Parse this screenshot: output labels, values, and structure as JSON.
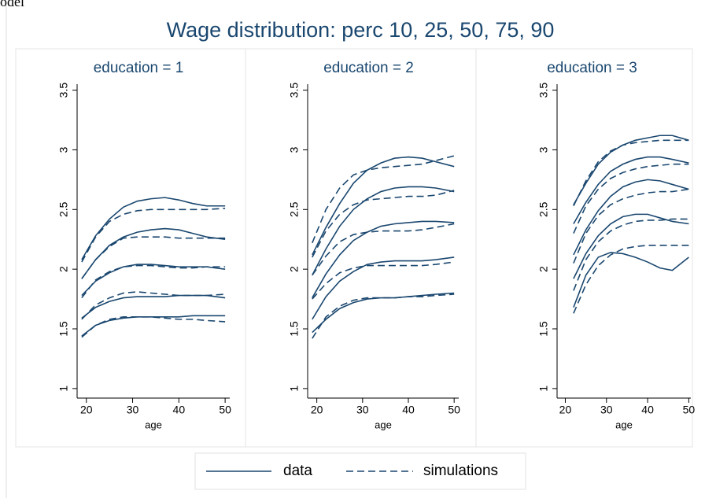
{
  "clipped_text": "odel",
  "title": "Wage distribution: perc 10, 25, 50, 75, 90",
  "legend": [
    {
      "name": "data",
      "style": "solid",
      "color": "#1a476f"
    },
    {
      "name": "simulations",
      "style": "dashed",
      "color": "#1a476f"
    }
  ],
  "chart_data": [
    {
      "type": "line",
      "title": "education = 1",
      "x_label": "age",
      "x": [
        19,
        22,
        25,
        28,
        31,
        34,
        37,
        40,
        43,
        46,
        50
      ],
      "xlim": [
        18,
        51
      ],
      "xticks": [
        20,
        30,
        40,
        50
      ],
      "ylim": [
        0.92,
        3.55
      ],
      "yticks": [
        1,
        1.5,
        2,
        2.5,
        3,
        3.5
      ],
      "series": [
        {
          "style": "solid",
          "color": "#1a476f",
          "values": [
            2.08,
            2.28,
            2.42,
            2.52,
            2.57,
            2.59,
            2.6,
            2.58,
            2.55,
            2.53,
            2.53
          ]
        },
        {
          "style": "solid",
          "color": "#1a476f",
          "values": [
            1.92,
            2.08,
            2.2,
            2.27,
            2.31,
            2.33,
            2.34,
            2.33,
            2.3,
            2.27,
            2.25
          ]
        },
        {
          "style": "solid",
          "color": "#1a476f",
          "values": [
            1.78,
            1.9,
            1.97,
            2.02,
            2.04,
            2.04,
            2.03,
            2.02,
            2.02,
            2.02,
            2.0
          ]
        },
        {
          "style": "solid",
          "color": "#1a476f",
          "values": [
            1.59,
            1.68,
            1.73,
            1.76,
            1.77,
            1.77,
            1.77,
            1.78,
            1.78,
            1.78,
            1.76
          ]
        },
        {
          "style": "solid",
          "color": "#1a476f",
          "values": [
            1.44,
            1.53,
            1.57,
            1.59,
            1.6,
            1.6,
            1.6,
            1.6,
            1.61,
            1.61,
            1.61
          ]
        },
        {
          "style": "dashed",
          "color": "#1a476f",
          "values": [
            2.06,
            2.27,
            2.4,
            2.46,
            2.49,
            2.5,
            2.5,
            2.5,
            2.5,
            2.5,
            2.51
          ]
        },
        {
          "style": "dashed",
          "color": "#1a476f",
          "values": [
            1.92,
            2.08,
            2.19,
            2.26,
            2.27,
            2.27,
            2.27,
            2.26,
            2.26,
            2.26,
            2.26
          ]
        },
        {
          "style": "dashed",
          "color": "#1a476f",
          "values": [
            1.76,
            1.91,
            1.98,
            2.02,
            2.03,
            2.03,
            2.02,
            2.01,
            2.01,
            2.02,
            2.02
          ]
        },
        {
          "style": "dashed",
          "color": "#1a476f",
          "values": [
            1.58,
            1.7,
            1.76,
            1.8,
            1.81,
            1.8,
            1.79,
            1.78,
            1.78,
            1.78,
            1.79
          ]
        },
        {
          "style": "dashed",
          "color": "#1a476f",
          "values": [
            1.43,
            1.53,
            1.58,
            1.6,
            1.6,
            1.6,
            1.59,
            1.58,
            1.58,
            1.57,
            1.56
          ]
        }
      ]
    },
    {
      "type": "line",
      "title": "education = 2",
      "x_label": "age",
      "x": [
        19,
        22,
        25,
        28,
        31,
        34,
        37,
        40,
        43,
        46,
        50
      ],
      "xlim": [
        18,
        51
      ],
      "xticks": [
        20,
        30,
        40,
        50
      ],
      "ylim": [
        0.92,
        3.55
      ],
      "yticks": [
        1,
        1.5,
        2,
        2.5,
        3,
        3.5
      ],
      "series": [
        {
          "style": "solid",
          "color": "#1a476f",
          "values": [
            2.12,
            2.35,
            2.55,
            2.72,
            2.83,
            2.89,
            2.93,
            2.94,
            2.93,
            2.9,
            2.86
          ]
        },
        {
          "style": "solid",
          "color": "#1a476f",
          "values": [
            1.95,
            2.17,
            2.36,
            2.5,
            2.59,
            2.65,
            2.68,
            2.69,
            2.69,
            2.68,
            2.65
          ]
        },
        {
          "style": "solid",
          "color": "#1a476f",
          "values": [
            1.76,
            1.96,
            2.12,
            2.24,
            2.31,
            2.36,
            2.38,
            2.39,
            2.4,
            2.4,
            2.39
          ]
        },
        {
          "style": "solid",
          "color": "#1a476f",
          "values": [
            1.58,
            1.77,
            1.9,
            1.98,
            2.04,
            2.06,
            2.07,
            2.07,
            2.07,
            2.08,
            2.1
          ]
        },
        {
          "style": "solid",
          "color": "#1a476f",
          "values": [
            1.47,
            1.58,
            1.67,
            1.72,
            1.75,
            1.76,
            1.76,
            1.77,
            1.78,
            1.79,
            1.8
          ]
        },
        {
          "style": "dashed",
          "color": "#1a476f",
          "values": [
            2.22,
            2.5,
            2.68,
            2.79,
            2.83,
            2.85,
            2.86,
            2.87,
            2.88,
            2.91,
            2.95
          ]
        },
        {
          "style": "dashed",
          "color": "#1a476f",
          "values": [
            2.1,
            2.32,
            2.46,
            2.54,
            2.58,
            2.59,
            2.6,
            2.61,
            2.61,
            2.62,
            2.66
          ]
        },
        {
          "style": "dashed",
          "color": "#1a476f",
          "values": [
            1.95,
            2.11,
            2.23,
            2.29,
            2.31,
            2.32,
            2.32,
            2.32,
            2.33,
            2.35,
            2.38
          ]
        },
        {
          "style": "dashed",
          "color": "#1a476f",
          "values": [
            1.75,
            1.88,
            1.97,
            2.01,
            2.03,
            2.03,
            2.03,
            2.03,
            2.03,
            2.04,
            2.06
          ]
        },
        {
          "style": "dashed",
          "color": "#1a476f",
          "values": [
            1.42,
            1.6,
            1.69,
            1.74,
            1.76,
            1.76,
            1.76,
            1.77,
            1.77,
            1.78,
            1.79
          ]
        }
      ]
    },
    {
      "type": "line",
      "title": "education = 3",
      "x_label": "age",
      "x": [
        22,
        25,
        28,
        31,
        34,
        37,
        40,
        43,
        46,
        50
      ],
      "xlim": [
        18,
        50.5
      ],
      "xticks": [
        20,
        30,
        40,
        50
      ],
      "ylim": [
        0.92,
        3.55
      ],
      "yticks": [
        1,
        1.5,
        2,
        2.5,
        3,
        3.5
      ],
      "series": [
        {
          "style": "solid",
          "color": "#1a476f",
          "values": [
            2.54,
            2.72,
            2.88,
            2.98,
            3.04,
            3.08,
            3.1,
            3.12,
            3.12,
            3.08
          ]
        },
        {
          "style": "solid",
          "color": "#1a476f",
          "values": [
            2.38,
            2.56,
            2.71,
            2.82,
            2.88,
            2.92,
            2.94,
            2.94,
            2.92,
            2.89
          ]
        },
        {
          "style": "solid",
          "color": "#1a476f",
          "values": [
            2.12,
            2.33,
            2.49,
            2.61,
            2.69,
            2.73,
            2.75,
            2.74,
            2.71,
            2.67
          ]
        },
        {
          "style": "solid",
          "color": "#1a476f",
          "values": [
            1.92,
            2.13,
            2.28,
            2.38,
            2.44,
            2.46,
            2.46,
            2.43,
            2.4,
            2.38
          ]
        },
        {
          "style": "solid",
          "color": "#1a476f",
          "values": [
            1.68,
            1.95,
            2.1,
            2.14,
            2.13,
            2.1,
            2.06,
            2.01,
            1.99,
            2.1
          ]
        },
        {
          "style": "dashed",
          "color": "#1a476f",
          "values": [
            2.53,
            2.74,
            2.9,
            2.99,
            3.04,
            3.06,
            3.07,
            3.08,
            3.08,
            3.08
          ]
        },
        {
          "style": "dashed",
          "color": "#1a476f",
          "values": [
            2.3,
            2.53,
            2.67,
            2.76,
            2.81,
            2.84,
            2.86,
            2.87,
            2.88,
            2.88
          ]
        },
        {
          "style": "dashed",
          "color": "#1a476f",
          "values": [
            2.05,
            2.3,
            2.45,
            2.54,
            2.59,
            2.62,
            2.64,
            2.65,
            2.65,
            2.67
          ]
        },
        {
          "style": "dashed",
          "color": "#1a476f",
          "values": [
            1.82,
            2.08,
            2.23,
            2.32,
            2.37,
            2.4,
            2.41,
            2.41,
            2.42,
            2.42
          ]
        },
        {
          "style": "dashed",
          "color": "#1a476f",
          "values": [
            1.63,
            1.87,
            2.03,
            2.12,
            2.17,
            2.19,
            2.2,
            2.2,
            2.2,
            2.2
          ]
        }
      ]
    }
  ]
}
